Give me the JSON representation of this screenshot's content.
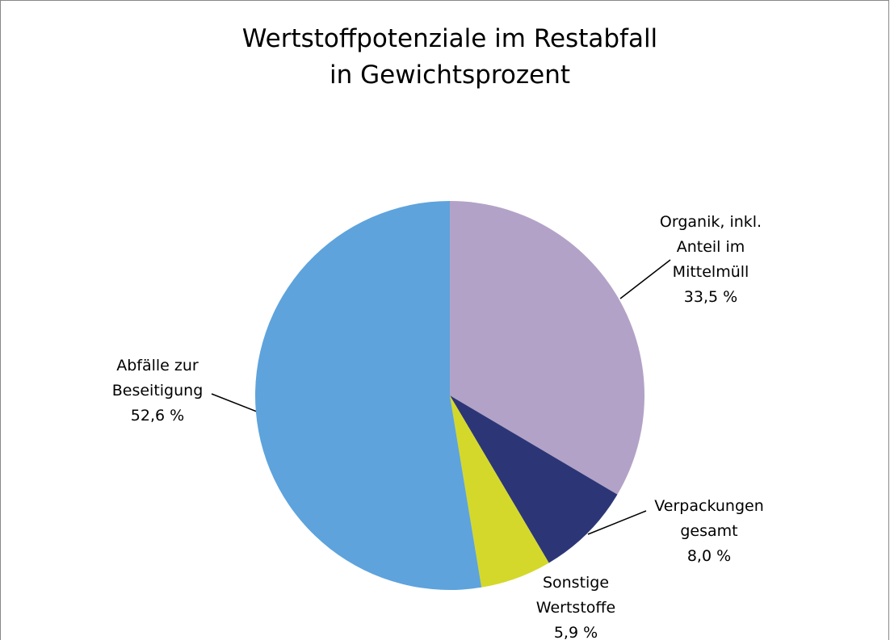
{
  "chart_data": {
    "type": "pie",
    "title": "Wertstoffpotenziale im Restabfall\nin Gewichtsprozent",
    "categories": [
      "Organik, inkl.\nAnteil im\nMittelmüll",
      "Verpackungen\ngesamt",
      "Sonstige\nWertstoffe",
      "Abfälle zur\nBeseitigung"
    ],
    "values": [
      33.5,
      8.0,
      5.9,
      52.6
    ],
    "value_labels": [
      "33,5 %",
      "8,0 %",
      "5,9 %",
      "52,6 %"
    ],
    "colors": [
      "#b3a2c7",
      "#2c3677",
      "#d4d82a",
      "#5ea3dc"
    ]
  }
}
